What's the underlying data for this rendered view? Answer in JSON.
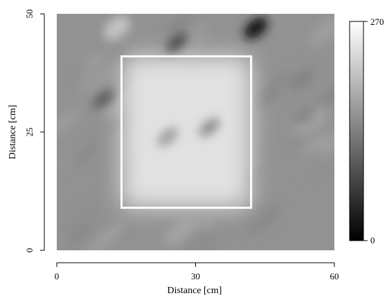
{
  "chart_data": {
    "type": "heatmap",
    "colormap": "grayscale",
    "xlabel": "Distance [cm]",
    "ylabel": "Distance [cm]",
    "xlim": [
      0,
      60
    ],
    "ylim": [
      0,
      50
    ],
    "x_ticks": [
      {
        "value": 0,
        "label": "0"
      },
      {
        "value": 30,
        "label": "30"
      },
      {
        "value": 60,
        "label": "60"
      }
    ],
    "y_ticks": [
      {
        "value": 0,
        "label": "0"
      },
      {
        "value": 25,
        "label": "25"
      },
      {
        "value": 50,
        "label": "50"
      }
    ],
    "colorbar": {
      "min": 0,
      "max": 270,
      "min_label": "0",
      "max_label": "270"
    },
    "background_level": 155,
    "bright_region": {
      "x": [
        14,
        42
      ],
      "y": [
        9,
        41
      ],
      "level": 238
    },
    "highlight_box": {
      "x": [
        14,
        42
      ],
      "y": [
        9,
        41
      ],
      "color": "#ffffff"
    },
    "features": [
      {
        "kind": "dark-spot",
        "x": 43,
        "y": 47,
        "level": 25
      },
      {
        "kind": "dark-streak",
        "x": 26,
        "y": 44,
        "level": 85
      },
      {
        "kind": "bright-patch",
        "x": 13,
        "y": 47,
        "level": 205
      },
      {
        "kind": "dark-streak",
        "x": 10,
        "y": 32,
        "level": 100
      },
      {
        "kind": "dark-streak",
        "x": 33,
        "y": 26,
        "level": 150
      },
      {
        "kind": "dark-streak",
        "x": 24,
        "y": 24,
        "level": 165
      }
    ]
  }
}
